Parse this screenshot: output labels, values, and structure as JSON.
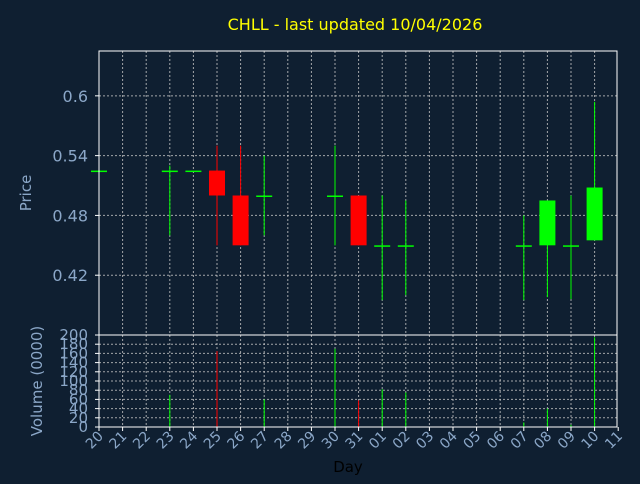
{
  "colors": {
    "background": "#0f1f31",
    "frame": "#ffffff",
    "grid": "#c8c8c8",
    "title": "#ffff00",
    "tick_text": "#8ba7c8",
    "axis_label": "#8ba7c8",
    "day_label": "#000000",
    "up": "#00ff00",
    "down": "#ff0000"
  },
  "chart_data": [
    {
      "type": "candlestick",
      "title": "CHLL - last updated 10/04/2026",
      "ylabel": "Price",
      "xlabel": "Day",
      "ylim": [
        0.36,
        0.645
      ],
      "y_ticks": [
        0.42,
        0.48,
        0.54,
        0.6
      ],
      "y_tick_labels": [
        "0.42",
        "0.48",
        "0.54",
        "0.6"
      ],
      "grid": true,
      "x_ticks": [
        "20",
        "21",
        "22",
        "23",
        "24",
        "25",
        "26",
        "27",
        "28",
        "29",
        "30",
        "31",
        "01",
        "02",
        "03",
        "04",
        "05",
        "06",
        "07",
        "08",
        "09",
        "10",
        "11"
      ],
      "candles": [
        {
          "x": "20",
          "open": 0.525,
          "high": 0.525,
          "low": 0.525,
          "close": 0.525
        },
        {
          "x": "23",
          "open": 0.525,
          "high": 0.53,
          "low": 0.46,
          "close": 0.525
        },
        {
          "x": "24",
          "open": 0.525,
          "high": 0.525,
          "low": 0.525,
          "close": 0.525
        },
        {
          "x": "25",
          "open": 0.525,
          "high": 0.55,
          "low": 0.45,
          "close": 0.5
        },
        {
          "x": "26",
          "open": 0.5,
          "high": 0.55,
          "low": 0.45,
          "close": 0.45
        },
        {
          "x": "27",
          "open": 0.5,
          "high": 0.54,
          "low": 0.46,
          "close": 0.5
        },
        {
          "x": "30",
          "open": 0.5,
          "high": 0.55,
          "low": 0.45,
          "close": 0.5
        },
        {
          "x": "31",
          "open": 0.5,
          "high": 0.5,
          "low": 0.45,
          "close": 0.45
        },
        {
          "x": "01",
          "open": 0.45,
          "high": 0.5,
          "low": 0.395,
          "close": 0.45
        },
        {
          "x": "02",
          "open": 0.45,
          "high": 0.495,
          "low": 0.4,
          "close": 0.45
        },
        {
          "x": "07",
          "open": 0.45,
          "high": 0.48,
          "low": 0.395,
          "close": 0.45
        },
        {
          "x": "08",
          "open": 0.45,
          "high": 0.495,
          "low": 0.398,
          "close": 0.495
        },
        {
          "x": "09",
          "open": 0.45,
          "high": 0.5,
          "low": 0.396,
          "close": 0.45
        },
        {
          "x": "10",
          "open": 0.455,
          "high": 0.594,
          "low": 0.455,
          "close": 0.508
        }
      ]
    },
    {
      "type": "bar",
      "ylabel": "Volume (0000)",
      "ylim": [
        0,
        200
      ],
      "y_ticks": [
        0,
        20,
        40,
        60,
        80,
        100,
        120,
        140,
        160,
        180,
        200
      ],
      "y_tick_labels": [
        "0",
        "20",
        "40",
        "60",
        "80",
        "100",
        "120",
        "140",
        "160",
        "180",
        "200"
      ],
      "grid": true,
      "bars": [
        {
          "x": "23",
          "value": 70,
          "direction": "up"
        },
        {
          "x": "25",
          "value": 165,
          "direction": "down"
        },
        {
          "x": "27",
          "value": 60,
          "direction": "up"
        },
        {
          "x": "30",
          "value": 170,
          "direction": "up"
        },
        {
          "x": "31",
          "value": 58,
          "direction": "down"
        },
        {
          "x": "01",
          "value": 82,
          "direction": "up"
        },
        {
          "x": "02",
          "value": 75,
          "direction": "up"
        },
        {
          "x": "07",
          "value": 10,
          "direction": "up"
        },
        {
          "x": "08",
          "value": 40,
          "direction": "up"
        },
        {
          "x": "09",
          "value": 5,
          "direction": "up"
        },
        {
          "x": "10",
          "value": 195,
          "direction": "up"
        }
      ]
    }
  ]
}
